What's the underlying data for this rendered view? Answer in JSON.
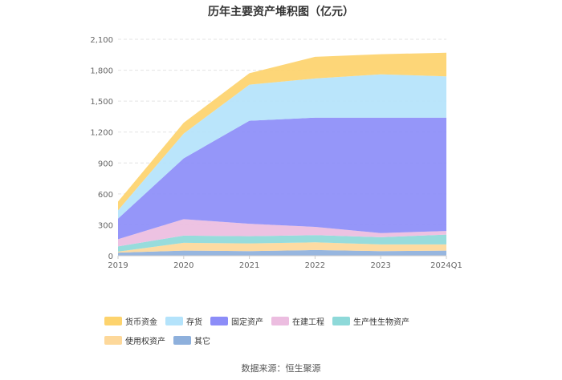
{
  "chart_data": {
    "type": "area",
    "stacked": true,
    "title": "历年主要资产堆积图（亿元）",
    "categories": [
      "2019",
      "2020",
      "2021",
      "2022",
      "2023",
      "2024Q1"
    ],
    "y_ticks": [
      "0",
      "300",
      "600",
      "900",
      "1,200",
      "1,500",
      "1,800",
      "2,100"
    ],
    "ylim": [
      0,
      2100
    ],
    "series": [
      {
        "name": "其它",
        "color": "#8eb0dc",
        "values": [
          30,
          50,
          45,
          55,
          45,
          50
        ]
      },
      {
        "name": "使用权资产",
        "color": "#fdd89a",
        "values": [
          10,
          75,
          75,
          75,
          65,
          60
        ]
      },
      {
        "name": "生产性生物资产",
        "color": "#8ed9d9",
        "values": [
          50,
          70,
          70,
          70,
          70,
          95
        ]
      },
      {
        "name": "在建工程",
        "color": "#ecbde0",
        "values": [
          70,
          160,
          120,
          80,
          40,
          35
        ]
      },
      {
        "name": "固定资产",
        "color": "#8c8df8",
        "values": [
          200,
          590,
          1000,
          1060,
          1120,
          1100
        ]
      },
      {
        "name": "存货",
        "color": "#b4e3fb",
        "values": [
          80,
          240,
          350,
          380,
          420,
          400
        ]
      },
      {
        "name": "货币资金",
        "color": "#fdd36d",
        "values": [
          85,
          105,
          110,
          210,
          195,
          230
        ]
      }
    ],
    "legend_order": [
      "货币资金",
      "存货",
      "固定资产",
      "在建工程",
      "生产性生物资产",
      "使用权资产",
      "其它"
    ],
    "legend_position": "bottom"
  },
  "source": "数据来源：恒生聚源"
}
